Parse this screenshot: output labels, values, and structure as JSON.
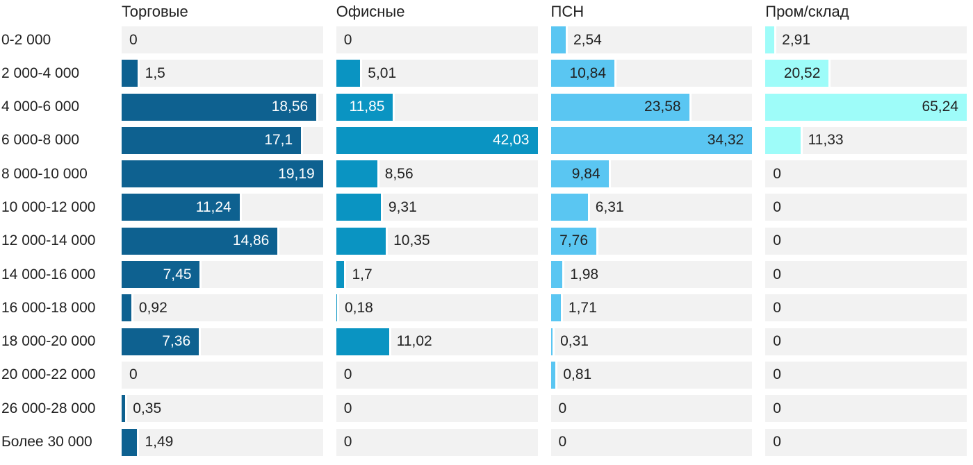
{
  "chart_data": {
    "type": "bar",
    "orientation": "horizontal",
    "layout": "small-multiples; each column scaled so its own max value fills the full track width",
    "grid": "off",
    "track_color": "#f2f2f2",
    "text_color": "#212121",
    "categories": [
      "0-2 000",
      "2 000-4 000",
      "4 000-6 000",
      "6 000-8 000",
      "8 000-10 000",
      "10 000-12 000",
      "12 000-14 000",
      "14 000-16 000",
      "16 000-18 000",
      "18 000-20 000",
      "20 000-22 000",
      "26 000-28 000",
      "Более 30 000"
    ],
    "series": [
      {
        "name": "Торговые",
        "color": "#0e6190",
        "inside_label_color": "#ffffff",
        "outside_label_color": "#212121",
        "values": [
          0,
          1.5,
          18.56,
          17.1,
          19.19,
          11.24,
          14.86,
          7.45,
          0.92,
          7.36,
          0,
          0.35,
          1.49
        ],
        "labels": [
          "0",
          "1,5",
          "18,56",
          "17,1",
          "19,19",
          "11,24",
          "14,86",
          "7,45",
          "0,92",
          "7,36",
          "0",
          "0,35",
          "1,49"
        ],
        "label_inside": [
          false,
          false,
          true,
          true,
          true,
          true,
          true,
          true,
          false,
          true,
          false,
          false,
          false
        ]
      },
      {
        "name": "Офисные",
        "color": "#0a94c2",
        "inside_label_color": "#ffffff",
        "outside_label_color": "#212121",
        "values": [
          0,
          5.01,
          11.85,
          42.03,
          8.56,
          9.31,
          10.35,
          1.7,
          0.18,
          11.02,
          0,
          0,
          0
        ],
        "labels": [
          "0",
          "5,01",
          "11,85",
          "42,03",
          "8,56",
          "9,31",
          "10,35",
          "1,7",
          "0,18",
          "11,02",
          "0",
          "0",
          "0"
        ],
        "label_inside": [
          false,
          false,
          true,
          true,
          false,
          false,
          false,
          false,
          false,
          false,
          false,
          false,
          false
        ]
      },
      {
        "name": "ПСН",
        "color": "#5ac6f2",
        "inside_label_color": "#212121",
        "outside_label_color": "#212121",
        "values": [
          2.54,
          10.84,
          23.58,
          34.32,
          9.84,
          6.31,
          7.76,
          1.98,
          1.71,
          0.31,
          0.81,
          0,
          0
        ],
        "labels": [
          "2,54",
          "10,84",
          "23,58",
          "34,32",
          "9,84",
          "6,31",
          "7,76",
          "1,98",
          "1,71",
          "0,31",
          "0,81",
          "0",
          "0"
        ],
        "label_inside": [
          false,
          true,
          true,
          true,
          true,
          false,
          true,
          false,
          false,
          false,
          false,
          false,
          false
        ]
      },
      {
        "name": "Пром/склад",
        "color": "#9efcf9",
        "inside_label_color": "#212121",
        "outside_label_color": "#212121",
        "values": [
          2.91,
          20.52,
          65.24,
          11.33,
          0,
          0,
          0,
          0,
          0,
          0,
          0,
          0,
          0
        ],
        "labels": [
          "2,91",
          "20,52",
          "65,24",
          "11,33",
          "0",
          "0",
          "0",
          "0",
          "0",
          "0",
          "0",
          "0",
          "0"
        ],
        "label_inside": [
          false,
          true,
          true,
          false,
          false,
          false,
          false,
          false,
          false,
          false,
          false,
          false,
          false
        ]
      }
    ]
  }
}
